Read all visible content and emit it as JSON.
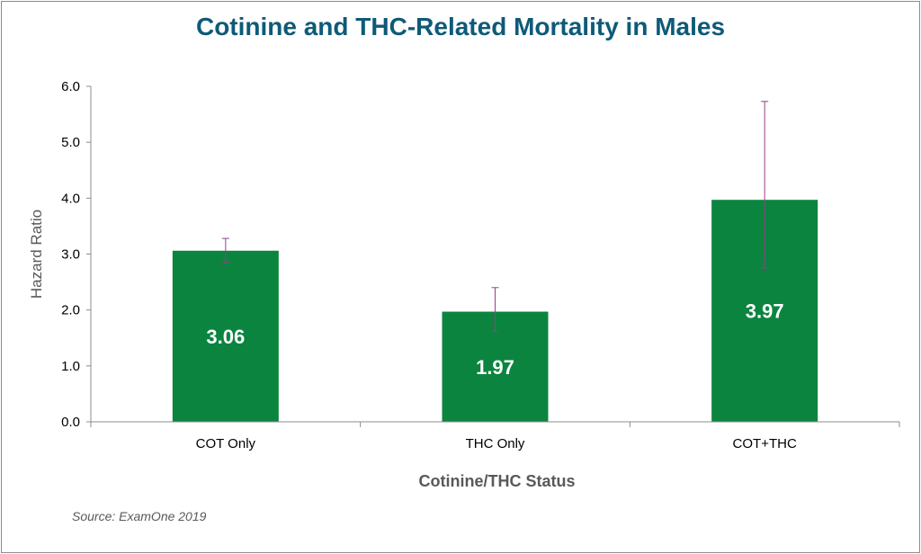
{
  "chart_data": {
    "type": "bar",
    "title": "Cotinine and THC-Related Mortality in Males",
    "xlabel": "Cotinine/THC Status",
    "ylabel": "Hazard Ratio",
    "categories": [
      "COT Only",
      "THC Only",
      "COT+THC"
    ],
    "values": [
      3.06,
      1.97,
      3.97
    ],
    "value_labels": [
      "3.06",
      "1.97",
      "3.97"
    ],
    "error_low": [
      2.85,
      1.62,
      2.75
    ],
    "error_high": [
      3.28,
      2.4,
      5.73
    ],
    "ylim": [
      0,
      6
    ],
    "yticks": [
      "0.0",
      "1.0",
      "2.0",
      "3.0",
      "4.0",
      "5.0",
      "6.0"
    ],
    "bar_color": "#0b843f",
    "error_bar_color": "#9b3d8c",
    "grid": false,
    "legend": "none"
  },
  "source": "Source: ExamOne 2019"
}
